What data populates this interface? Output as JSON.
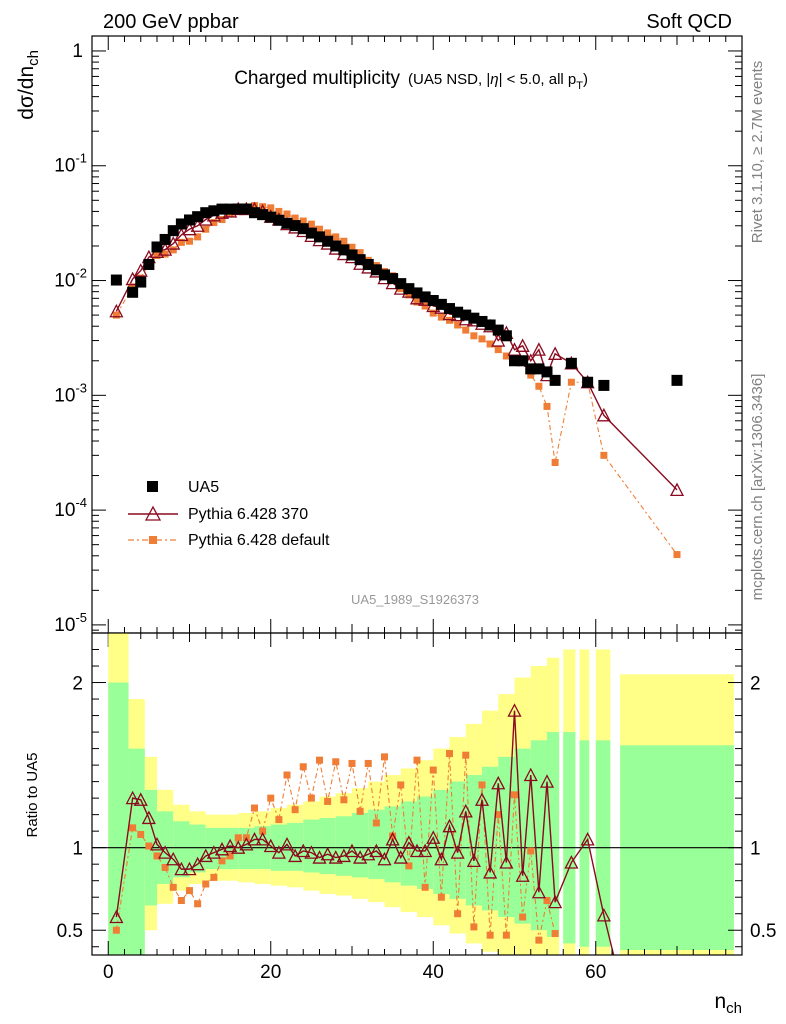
{
  "header": {
    "energy_label": "200 GeV ppbar",
    "category_label": "Soft QCD",
    "rivet_label": "Rivet 3.1.10, ≥ 2.7M events",
    "mcplots_label": "mcplots.cern.ch [arXiv:1306.3436]",
    "analysis_id": "UA5_1989_S1926373"
  },
  "chart_data": [
    {
      "type": "scatter",
      "panel": "main",
      "title": "Charged multiplicity",
      "subtitle": "(UA5 NSD, |η| < 5.0, all p_T)",
      "xlabel": "n_ch",
      "ylabel": "dσ/dn_ch",
      "yscale": "log",
      "xlim": [
        -2,
        78
      ],
      "ylim": [
        8.5e-06,
        1.35
      ],
      "y_ticks": [
        "1",
        "10^-1",
        "10^-2",
        "10^-3",
        "10^-4",
        "10^-5"
      ],
      "legend_position": "bottom-left",
      "series": [
        {
          "name": "UA5",
          "style": "black squares",
          "color": "#000000",
          "x": [
            1,
            3,
            4,
            5,
            6,
            7,
            8,
            9,
            10,
            11,
            12,
            13,
            14,
            15,
            16,
            17,
            18,
            19,
            20,
            21,
            22,
            23,
            24,
            25,
            26,
            27,
            28,
            29,
            30,
            31,
            32,
            33,
            34,
            35,
            36,
            37,
            38,
            39,
            40,
            41,
            42,
            43,
            44,
            45,
            46,
            47,
            48,
            49,
            50,
            51,
            52,
            53,
            54,
            55,
            57,
            59,
            61,
            70
          ],
          "y": [
            0.0101,
            0.0079,
            0.0097,
            0.0138,
            0.0196,
            0.0228,
            0.0272,
            0.0311,
            0.0337,
            0.036,
            0.039,
            0.0405,
            0.0419,
            0.0419,
            0.042,
            0.042,
            0.039,
            0.0375,
            0.0357,
            0.0335,
            0.0315,
            0.0301,
            0.0283,
            0.0259,
            0.024,
            0.022,
            0.02,
            0.0185,
            0.0167,
            0.0152,
            0.0138,
            0.0124,
            0.0112,
            0.0104,
            0.0094,
            0.0085,
            0.0078,
            0.0072,
            0.0067,
            0.0062,
            0.0057,
            0.0053,
            0.005,
            0.0047,
            0.0044,
            0.0041,
            0.0037,
            0.0033,
            0.002,
            0.002,
            0.0017,
            0.0017,
            0.0016,
            0.00135,
            0.0019,
            0.0013,
            0.00122,
            0.00135
          ]
        },
        {
          "name": "Pythia 6.428 370",
          "style": "dark red line with open triangles",
          "color": "#8b0a1f",
          "x": [
            1,
            3,
            4,
            5,
            6,
            7,
            8,
            9,
            10,
            11,
            12,
            13,
            14,
            15,
            16,
            17,
            18,
            19,
            20,
            21,
            22,
            23,
            24,
            25,
            26,
            27,
            28,
            29,
            30,
            31,
            32,
            33,
            34,
            35,
            36,
            37,
            38,
            39,
            40,
            41,
            42,
            43,
            44,
            45,
            46,
            47,
            48,
            49,
            50,
            51,
            52,
            53,
            54,
            55,
            57,
            59,
            61,
            70
          ],
          "y": [
            0.0054,
            0.0103,
            0.0122,
            0.016,
            0.0178,
            0.0186,
            0.021,
            0.025,
            0.028,
            0.03,
            0.034,
            0.037,
            0.039,
            0.04,
            0.042,
            0.042,
            0.042,
            0.04,
            0.036,
            0.034,
            0.031,
            0.029,
            0.027,
            0.0245,
            0.0225,
            0.021,
            0.019,
            0.017,
            0.016,
            0.014,
            0.013,
            0.012,
            0.0105,
            0.0095,
            0.0085,
            0.008,
            0.007,
            0.0068,
            0.006,
            0.0058,
            0.0051,
            0.005,
            0.0046,
            0.0045,
            0.0042,
            0.004,
            0.003,
            0.0035,
            0.0025,
            0.0027,
            0.002,
            0.0025,
            0.0015,
            0.0023,
            0.0019,
            0.0013,
            0.00067,
            0.00015
          ]
        },
        {
          "name": "Pythia 6.428 default",
          "style": "orange dash-dot line with filled squares",
          "color": "#f07d35",
          "x": [
            1,
            3,
            4,
            5,
            6,
            7,
            8,
            9,
            10,
            11,
            12,
            13,
            14,
            15,
            16,
            17,
            18,
            19,
            20,
            21,
            22,
            23,
            24,
            25,
            26,
            27,
            28,
            29,
            30,
            31,
            32,
            33,
            34,
            35,
            36,
            37,
            38,
            39,
            40,
            41,
            42,
            43,
            44,
            45,
            46,
            47,
            48,
            49,
            50,
            51,
            52,
            53,
            54,
            55,
            57,
            59,
            61,
            70
          ],
          "y": [
            0.005,
            0.0088,
            0.0105,
            0.014,
            0.0165,
            0.017,
            0.0185,
            0.0215,
            0.022,
            0.024,
            0.028,
            0.032,
            0.034,
            0.038,
            0.043,
            0.043,
            0.045,
            0.044,
            0.043,
            0.04,
            0.038,
            0.035,
            0.033,
            0.031,
            0.028,
            0.026,
            0.024,
            0.022,
            0.0195,
            0.0175,
            0.015,
            0.0135,
            0.012,
            0.011,
            0.0085,
            0.0075,
            0.0065,
            0.006,
            0.0052,
            0.0048,
            0.0045,
            0.0041,
            0.0037,
            0.0033,
            0.0031,
            0.0028,
            0.0025,
            0.0022,
            0.002,
            0.002,
            0.0015,
            0.0012,
            0.0008,
            0.00026,
            0.0013,
            0.0013,
            0.0003,
            4.1e-05
          ]
        }
      ]
    },
    {
      "type": "scatter",
      "panel": "ratio",
      "ylabel": "Ratio to UA5",
      "xlabel": "n_ch",
      "xlim": [
        -2,
        78
      ],
      "ylim": [
        0.35,
        2.3
      ],
      "x_ticks": [
        0,
        20,
        40,
        60
      ],
      "y_ticks": [
        0.5,
        1,
        2
      ],
      "reference_line": 1,
      "band_colors": {
        "inner": "#99ff99",
        "outer": "#ffff88"
      },
      "bands": [
        {
          "x0": 0,
          "x1": 2.5,
          "in_lo": 0.35,
          "in_hi": 2.0,
          "out_lo": 0.35,
          "out_hi": 2.3
        },
        {
          "x0": 2.5,
          "x1": 4.5,
          "in_lo": 0.35,
          "in_hi": 1.6,
          "out_lo": 0.35,
          "out_hi": 1.9
        },
        {
          "x0": 4.5,
          "x1": 6,
          "in_lo": 0.65,
          "in_hi": 1.35,
          "out_lo": 0.5,
          "out_hi": 1.55
        },
        {
          "x0": 6,
          "x1": 8,
          "in_lo": 0.78,
          "in_hi": 1.22,
          "out_lo": 0.66,
          "out_hi": 1.35
        },
        {
          "x0": 8,
          "x1": 10,
          "in_lo": 0.82,
          "in_hi": 1.16,
          "out_lo": 0.74,
          "out_hi": 1.26
        },
        {
          "x0": 10,
          "x1": 12,
          "in_lo": 0.85,
          "in_hi": 1.14,
          "out_lo": 0.78,
          "out_hi": 1.22
        },
        {
          "x0": 12,
          "x1": 14,
          "in_lo": 0.87,
          "in_hi": 1.12,
          "out_lo": 0.8,
          "out_hi": 1.2
        },
        {
          "x0": 14,
          "x1": 16,
          "in_lo": 0.87,
          "in_hi": 1.12,
          "out_lo": 0.8,
          "out_hi": 1.2
        },
        {
          "x0": 16,
          "x1": 18,
          "in_lo": 0.87,
          "in_hi": 1.12,
          "out_lo": 0.79,
          "out_hi": 1.21
        },
        {
          "x0": 18,
          "x1": 20,
          "in_lo": 0.87,
          "in_hi": 1.13,
          "out_lo": 0.78,
          "out_hi": 1.22
        },
        {
          "x0": 20,
          "x1": 22,
          "in_lo": 0.86,
          "in_hi": 1.14,
          "out_lo": 0.77,
          "out_hi": 1.24
        },
        {
          "x0": 22,
          "x1": 24,
          "in_lo": 0.86,
          "in_hi": 1.15,
          "out_lo": 0.76,
          "out_hi": 1.26
        },
        {
          "x0": 24,
          "x1": 26,
          "in_lo": 0.85,
          "in_hi": 1.17,
          "out_lo": 0.74,
          "out_hi": 1.28
        },
        {
          "x0": 26,
          "x1": 28,
          "in_lo": 0.84,
          "in_hi": 1.18,
          "out_lo": 0.72,
          "out_hi": 1.31
        },
        {
          "x0": 28,
          "x1": 30,
          "in_lo": 0.83,
          "in_hi": 1.19,
          "out_lo": 0.71,
          "out_hi": 1.33
        },
        {
          "x0": 30,
          "x1": 32,
          "in_lo": 0.82,
          "in_hi": 1.21,
          "out_lo": 0.69,
          "out_hi": 1.36
        },
        {
          "x0": 32,
          "x1": 34,
          "in_lo": 0.81,
          "in_hi": 1.23,
          "out_lo": 0.67,
          "out_hi": 1.4
        },
        {
          "x0": 34,
          "x1": 36,
          "in_lo": 0.79,
          "in_hi": 1.25,
          "out_lo": 0.64,
          "out_hi": 1.44
        },
        {
          "x0": 36,
          "x1": 38,
          "in_lo": 0.77,
          "in_hi": 1.28,
          "out_lo": 0.61,
          "out_hi": 1.48
        },
        {
          "x0": 38,
          "x1": 40,
          "in_lo": 0.75,
          "in_hi": 1.31,
          "out_lo": 0.58,
          "out_hi": 1.53
        },
        {
          "x0": 40,
          "x1": 42,
          "in_lo": 0.72,
          "in_hi": 1.35,
          "out_lo": 0.53,
          "out_hi": 1.6
        },
        {
          "x0": 42,
          "x1": 44,
          "in_lo": 0.69,
          "in_hi": 1.4,
          "out_lo": 0.48,
          "out_hi": 1.67
        },
        {
          "x0": 44,
          "x1": 46,
          "in_lo": 0.65,
          "in_hi": 1.44,
          "out_lo": 0.42,
          "out_hi": 1.75
        },
        {
          "x0": 46,
          "x1": 48,
          "in_lo": 0.62,
          "in_hi": 1.49,
          "out_lo": 0.37,
          "out_hi": 1.83
        },
        {
          "x0": 48,
          "x1": 50,
          "in_lo": 0.58,
          "in_hi": 1.55,
          "out_lo": 0.35,
          "out_hi": 1.93
        },
        {
          "x0": 50,
          "x1": 52,
          "in_lo": 0.54,
          "in_hi": 1.6,
          "out_lo": 0.35,
          "out_hi": 2.03
        },
        {
          "x0": 52,
          "x1": 54,
          "in_lo": 0.5,
          "in_hi": 1.65,
          "out_lo": 0.35,
          "out_hi": 2.1
        },
        {
          "x0": 54,
          "x1": 55.5,
          "in_lo": 0.46,
          "in_hi": 1.7,
          "out_lo": 0.35,
          "out_hi": 2.15
        },
        {
          "x0": 56,
          "x1": 57.5,
          "in_lo": 0.42,
          "in_hi": 1.7,
          "out_lo": 0.35,
          "out_hi": 2.2
        },
        {
          "x0": 58,
          "x1": 59.2,
          "in_lo": 0.4,
          "in_hi": 1.65,
          "out_lo": 0.35,
          "out_hi": 2.2
        },
        {
          "x0": 60,
          "x1": 61.8,
          "in_lo": 0.4,
          "in_hi": 1.65,
          "out_lo": 0.35,
          "out_hi": 2.2
        },
        {
          "x0": 63,
          "x1": 77,
          "in_lo": 0.38,
          "in_hi": 1.62,
          "out_lo": 0.35,
          "out_hi": 2.05
        }
      ],
      "series": [
        {
          "name": "Pythia 6.428 370",
          "color": "#8b0a1f",
          "x": [
            1,
            3,
            4,
            5,
            6,
            7,
            8,
            9,
            10,
            11,
            12,
            13,
            14,
            15,
            16,
            17,
            18,
            19,
            20,
            21,
            22,
            23,
            24,
            25,
            26,
            27,
            28,
            29,
            30,
            31,
            32,
            33,
            34,
            35,
            36,
            37,
            38,
            39,
            40,
            41,
            42,
            43,
            44,
            45,
            46,
            47,
            48,
            49,
            50,
            51,
            52,
            53,
            54,
            55,
            57,
            59,
            61
          ],
          "y": [
            0.58,
            1.3,
            1.29,
            1.18,
            1.02,
            0.97,
            0.93,
            0.87,
            0.87,
            0.9,
            0.95,
            0.97,
            0.99,
            1.01,
            1.0,
            1.02,
            1.05,
            1.05,
            1.01,
            0.97,
            1.02,
            0.95,
            0.98,
            0.97,
            0.94,
            0.96,
            0.94,
            0.95,
            0.98,
            0.94,
            0.96,
            0.98,
            0.93,
            1.05,
            0.94,
            1.03,
            0.98,
            0.98,
            1.06,
            0.93,
            1.13,
            0.97,
            1.22,
            0.92,
            1.29,
            0.85,
            1.39,
            0.91,
            1.83,
            0.83,
            1.44,
            0.73,
            1.4,
            0.67,
            0.91,
            1.05,
            0.59
          ]
        },
        {
          "name": "Pythia 6.428 default",
          "color": "#f07d35",
          "x": [
            1,
            3,
            4,
            5,
            6,
            7,
            8,
            9,
            10,
            11,
            12,
            13,
            14,
            15,
            16,
            17,
            18,
            19,
            20,
            21,
            22,
            23,
            24,
            25,
            26,
            27,
            28,
            29,
            30,
            31,
            32,
            33,
            34,
            35,
            36,
            37,
            38,
            39,
            40,
            41,
            42,
            43,
            44,
            45,
            46,
            47,
            48,
            49,
            50,
            51,
            52,
            53,
            54,
            55
          ],
          "y": [
            0.5,
            1.12,
            1.08,
            1.01,
            0.95,
            0.88,
            0.76,
            0.68,
            0.74,
            0.66,
            0.78,
            0.82,
            0.92,
            0.95,
            1.06,
            1.06,
            1.24,
            1.1,
            1.3,
            1.17,
            1.44,
            1.23,
            1.49,
            1.3,
            1.53,
            1.28,
            1.52,
            1.29,
            1.51,
            1.22,
            1.51,
            1.15,
            1.55,
            1.07,
            1.38,
            0.89,
            1.53,
            0.76,
            1.47,
            0.7,
            1.57,
            0.6,
            1.56,
            0.52,
            1.38,
            0.47,
            1.2,
            0.47,
            1.32,
            0.58,
            0.98,
            0.44,
            0.68,
            0.48
          ]
        }
      ]
    }
  ]
}
